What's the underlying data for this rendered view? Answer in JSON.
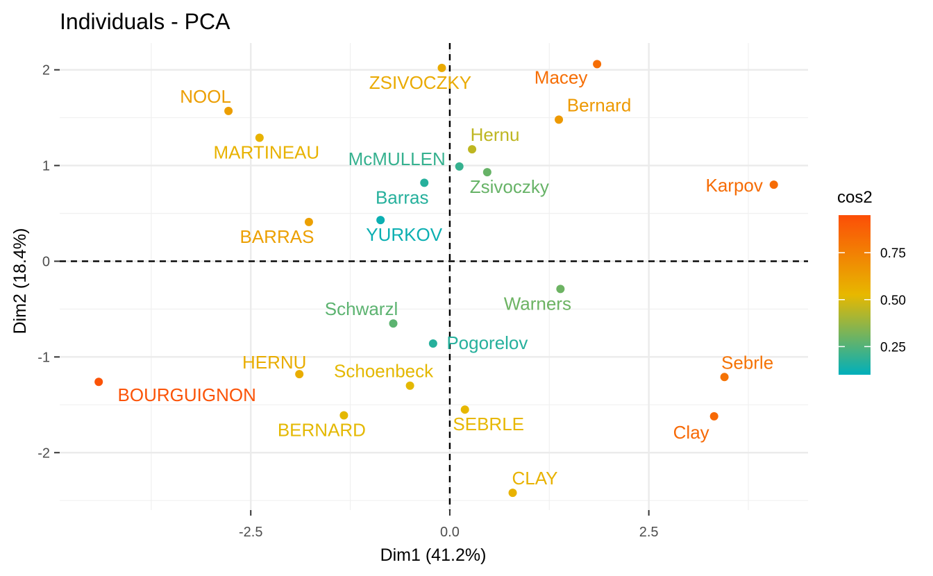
{
  "chart_data": {
    "type": "scatter",
    "title": "Individuals - PCA",
    "xlabel": "Dim1 (41.2%)",
    "ylabel": "Dim2 (18.4%)",
    "xlim": [
      -4.9,
      4.5
    ],
    "ylim": [
      -2.6,
      2.28
    ],
    "x_ticks": [
      -2.5,
      0.0,
      2.5
    ],
    "x_tick_labels": [
      "-2.5",
      "0.0",
      "2.5"
    ],
    "y_ticks": [
      -2,
      -1,
      0,
      1,
      2
    ],
    "y_tick_labels": [
      "-2",
      "-1",
      "0",
      "1",
      "2"
    ],
    "grid": true,
    "reference_lines": {
      "x": 0,
      "y": 0,
      "style": "dashed"
    },
    "legend": {
      "title": "cos2",
      "placement": "right",
      "ticks": [
        0.25,
        0.5,
        0.75
      ],
      "tick_labels": [
        "0.25",
        "0.50",
        "0.75"
      ],
      "range": [
        0.1,
        0.95
      ],
      "colors": [
        "#00AFBB",
        "#E7B800",
        "#FC4E07"
      ]
    },
    "points": [
      {
        "label": "SEBRLE",
        "x": 0.19,
        "y": -1.55,
        "cos2": 0.53
      },
      {
        "label": "CLAY",
        "x": 0.79,
        "y": -2.42,
        "cos2": 0.55
      },
      {
        "label": "BERNARD",
        "x": -1.33,
        "y": -1.61,
        "cos2": 0.52
      },
      {
        "label": "YURKOV",
        "x": -0.87,
        "y": 0.43,
        "cos2": 0.12
      },
      {
        "label": "ZSIVOCZKY",
        "x": -0.1,
        "y": 2.02,
        "cos2": 0.58
      },
      {
        "label": "McMULLEN",
        "x": 0.12,
        "y": 0.99,
        "cos2": 0.2
      },
      {
        "label": "MARTINEAU",
        "x": -2.39,
        "y": 1.29,
        "cos2": 0.55
      },
      {
        "label": "HERNU",
        "x": -1.89,
        "y": -1.18,
        "cos2": 0.57
      },
      {
        "label": "BARRAS",
        "x": -1.77,
        "y": 0.41,
        "cos2": 0.62
      },
      {
        "label": "NOOL",
        "x": -2.78,
        "y": 1.57,
        "cos2": 0.63
      },
      {
        "label": "BOURGUIGNON",
        "x": -4.41,
        "y": -1.26,
        "cos2": 0.93
      },
      {
        "label": "Sebrle",
        "x": 3.45,
        "y": -1.21,
        "cos2": 0.8
      },
      {
        "label": "Clay",
        "x": 3.32,
        "y": -1.62,
        "cos2": 0.84
      },
      {
        "label": "Karpov",
        "x": 4.07,
        "y": 0.8,
        "cos2": 0.83
      },
      {
        "label": "Macey",
        "x": 1.85,
        "y": 2.06,
        "cos2": 0.82
      },
      {
        "label": "Warners",
        "x": 1.39,
        "y": -0.29,
        "cos2": 0.3
      },
      {
        "label": "Zsivoczky",
        "x": 0.47,
        "y": 0.93,
        "cos2": 0.29
      },
      {
        "label": "Hernu",
        "x": 0.28,
        "y": 1.17,
        "cos2": 0.45
      },
      {
        "label": "Bernard",
        "x": 1.37,
        "y": 1.48,
        "cos2": 0.65
      },
      {
        "label": "Schwarzl",
        "x": -0.71,
        "y": -0.65,
        "cos2": 0.27
      },
      {
        "label": "Pogorelov",
        "x": -0.21,
        "y": -0.86,
        "cos2": 0.17
      },
      {
        "label": "Schoenbeck",
        "x": -0.5,
        "y": -1.3,
        "cos2": 0.52
      },
      {
        "label": "Barras",
        "x": -0.32,
        "y": 0.82,
        "cos2": 0.17
      }
    ]
  }
}
